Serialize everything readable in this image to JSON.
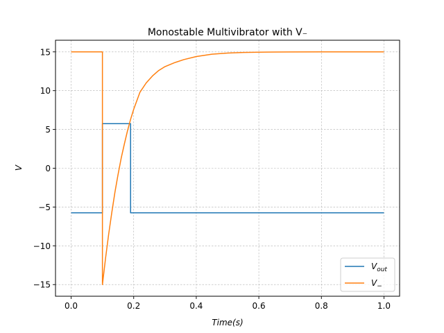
{
  "chart_data": {
    "type": "line",
    "title": "Monostable Multivibrator with V₋",
    "xlabel": "Time(s)",
    "ylabel": "V",
    "xlim": [
      -0.05,
      1.05
    ],
    "ylim": [
      -16.5,
      16.5
    ],
    "xticks": [
      0.0,
      0.2,
      0.4,
      0.6,
      0.8,
      1.0
    ],
    "xtick_labels": [
      "0.0",
      "0.2",
      "0.4",
      "0.6",
      "0.8",
      "1.0"
    ],
    "yticks": [
      -15,
      -10,
      -5,
      0,
      5,
      10,
      15
    ],
    "ytick_labels": [
      "−15",
      "−10",
      "−5",
      "0",
      "5",
      "10",
      "15"
    ],
    "grid": true,
    "legend_position": "lower-right",
    "series": [
      {
        "name": "V_out",
        "legend_main": "V",
        "legend_sub": "out",
        "color": "#1f77b4",
        "x": [
          0.0,
          0.1,
          0.1,
          0.19,
          0.19,
          1.0
        ],
        "y": [
          -5.75,
          -5.75,
          5.75,
          5.75,
          -5.75,
          -5.75
        ]
      },
      {
        "name": "V₋",
        "legend_main": "V",
        "legend_sub": "−",
        "color": "#ff7f0e",
        "x": [
          0.0,
          0.1,
          0.1,
          0.11,
          0.12,
          0.13,
          0.14,
          0.15,
          0.16,
          0.17,
          0.18,
          0.19,
          0.2,
          0.22,
          0.24,
          0.26,
          0.28,
          0.3,
          0.33,
          0.36,
          0.4,
          0.45,
          0.5,
          0.55,
          0.6,
          0.65,
          0.7,
          0.8,
          0.9,
          1.0
        ],
        "y": [
          15,
          15,
          -15,
          -11.6,
          -8.5,
          -5.7,
          -3.1,
          -0.8,
          1.3,
          3.1,
          4.8,
          6.3,
          7.6,
          9.8,
          11.0,
          11.9,
          12.6,
          13.1,
          13.6,
          14.0,
          14.4,
          14.7,
          14.85,
          14.92,
          14.96,
          14.98,
          14.99,
          15.0,
          15.0,
          15.0
        ]
      }
    ]
  }
}
